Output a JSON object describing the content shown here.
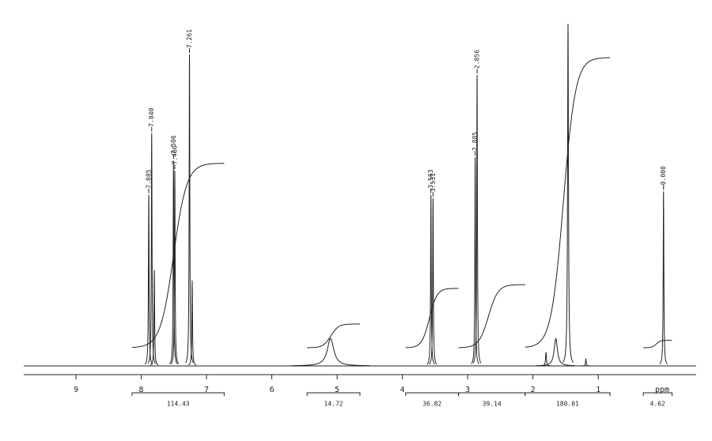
{
  "chart_data": {
    "type": "nmr",
    "x_label": "ppm",
    "xlim": [
      9.8,
      -0.5
    ],
    "xticks": [
      9,
      8,
      7,
      6,
      5,
      4,
      3,
      2,
      1
    ],
    "peaks": {
      "ppm": [
        7.885,
        7.84,
        7.8,
        7.506,
        7.486,
        7.261,
        7.22,
        5.1,
        3.563,
        3.531,
        2.885,
        2.856,
        1.8,
        1.65,
        1.463,
        1.19,
        0.0
      ],
      "height": [
        50,
        68,
        28,
        60,
        57,
        91,
        25,
        8,
        50,
        49,
        61,
        85,
        4,
        8,
        100,
        2,
        51
      ],
      "width": [
        0.006,
        0.006,
        0.006,
        0.006,
        0.006,
        0.006,
        0.006,
        0.06,
        0.006,
        0.006,
        0.006,
        0.006,
        0.008,
        0.03,
        0.008,
        0.006,
        0.006
      ],
      "labels": [
        "7.885",
        "7.840",
        null,
        "7.506",
        "7.486",
        "7.261",
        null,
        null,
        "3.563",
        "3.531",
        "2.885",
        "2.856",
        null,
        null,
        null,
        null,
        "0.000"
      ]
    },
    "integrals": [
      {
        "from": 8.14,
        "to": 6.73,
        "value": 114.43
      },
      {
        "from": 5.46,
        "to": 4.65,
        "value": 14.72
      },
      {
        "from": 3.95,
        "to": 3.14,
        "value": 36.82
      },
      {
        "from": 3.14,
        "to": 2.12,
        "value": 39.14
      },
      {
        "from": 2.12,
        "to": 0.82,
        "value": 180.01
      },
      {
        "from": 0.31,
        "to": -0.13,
        "value": 4.62
      }
    ]
  }
}
